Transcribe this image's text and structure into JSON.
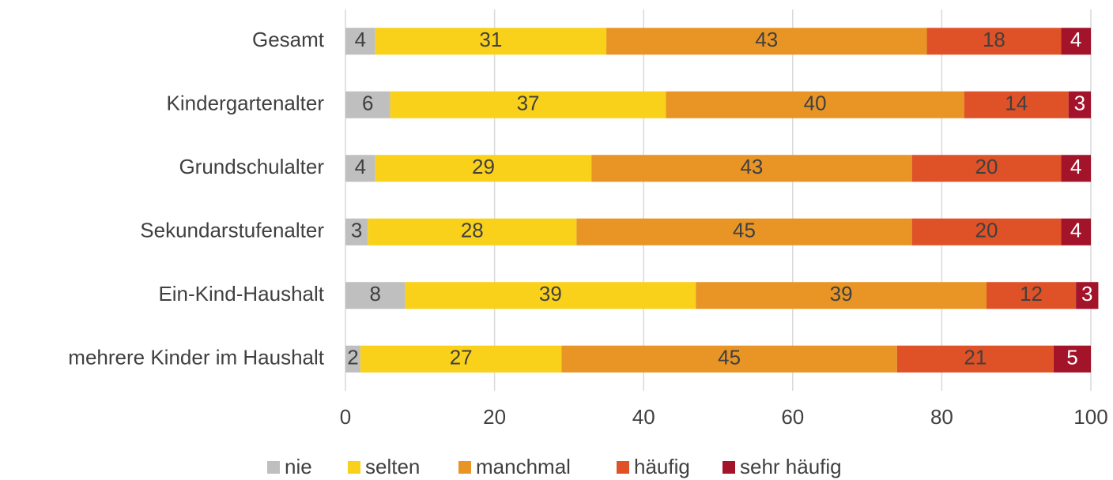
{
  "chart_data": {
    "type": "stacked_barh",
    "categories": [
      "Gesamt",
      "Kindergartenalter",
      "Grundschulalter",
      "Sekundarstufenalter",
      "Ein-Kind-Haushalt",
      "mehrere Kinder im Haushalt"
    ],
    "series": [
      {
        "name": "nie",
        "color": "#bfbfbf",
        "label_color": "#404040",
        "values": [
          4,
          6,
          4,
          3,
          8,
          2
        ]
      },
      {
        "name": "selten",
        "color": "#fad11a",
        "label_color": "#404040",
        "values": [
          31,
          37,
          29,
          28,
          39,
          27
        ]
      },
      {
        "name": "manchmal",
        "color": "#e89525",
        "label_color": "#404040",
        "values": [
          43,
          40,
          43,
          45,
          39,
          45
        ]
      },
      {
        "name": "häufig",
        "color": "#df5126",
        "label_color": "#404040",
        "values": [
          18,
          14,
          20,
          20,
          12,
          21
        ]
      },
      {
        "name": "sehr häufig",
        "color": "#a3132a",
        "label_color": "#ffffff",
        "values": [
          4,
          3,
          4,
          4,
          3,
          5
        ]
      }
    ],
    "xlim": [
      0,
      100
    ],
    "xticks": [
      0,
      20,
      40,
      60,
      80,
      100
    ],
    "grid": true,
    "legend": "bottom"
  }
}
